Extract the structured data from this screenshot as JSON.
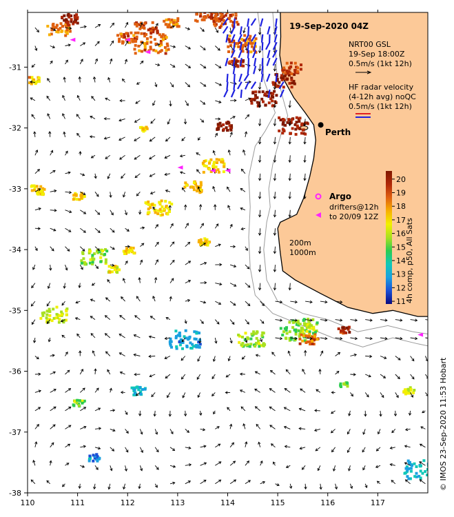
{
  "title": "19-Sep-2020 04Z",
  "credit": "© IMOS 23-Sep-2020 11:53 Hobart",
  "legend": {
    "nrt_title": "NRT00 GSL",
    "nrt_time": "19-Sep 18:00Z",
    "nrt_scale": "0.5m/s (1kt 12h)",
    "hf_title": "HF radar velocity",
    "hf_avg": "(4-12h avg) noQC",
    "hf_scale": "0.5m/s (1kt 12h)"
  },
  "places": {
    "perth": "Perth",
    "argo": "Argo",
    "drifters1": "drifters@12h",
    "drifters2": "to 20/09 12Z",
    "depth200": "200m",
    "depth1000": "1000m"
  },
  "colorbar": {
    "label": "4h comp, p50, All Sats",
    "ticks": [
      "20",
      "19",
      "18",
      "17",
      "16",
      "15",
      "14",
      "13",
      "12",
      "11"
    ],
    "min": 10.8,
    "max": 20.6,
    "colors": [
      "#0a0a80",
      "#1a4fd6",
      "#1aa0e0",
      "#10c8b8",
      "#2ccc50",
      "#a8e020",
      "#f2f000",
      "#f8b000",
      "#e06010",
      "#b02808",
      "#801800"
    ]
  },
  "axes": {
    "lon": {
      "min": 110,
      "max": 118,
      "ticks": [
        "110",
        "111",
        "112",
        "113",
        "114",
        "115",
        "116",
        "117"
      ]
    },
    "lat": {
      "min": -38,
      "max": -30.1,
      "ticks": [
        "-31",
        "-32",
        "-33",
        "-34",
        "-35",
        "-36",
        "-37",
        "-38"
      ]
    }
  },
  "argo_float": {
    "lon": 115.65,
    "lat": -33.13
  },
  "perth_dot": {
    "lon": 115.86,
    "lat": -31.95
  },
  "colors": {
    "land": "#fcc998",
    "coast": "#000000",
    "isobath": "#9a9a9a",
    "hf_blue": "#1e22e0",
    "hf_red": "#e02020",
    "argo": "#ff22ff"
  }
}
